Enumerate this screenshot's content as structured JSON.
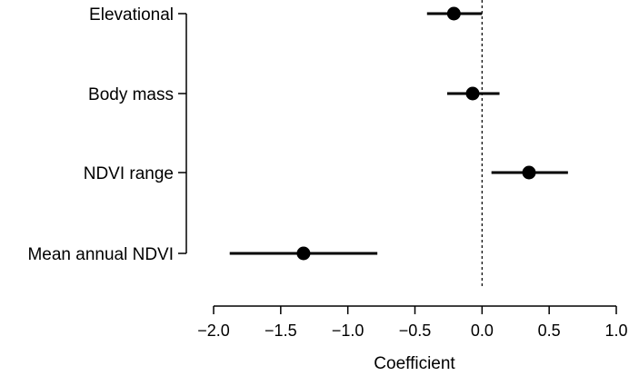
{
  "chart_data": {
    "type": "scatter",
    "subtype": "coefficient-plot-with-intervals",
    "title": "",
    "xlabel": "Coefficient",
    "ylabel": "",
    "xlim": [
      -2.0,
      1.0
    ],
    "x_ticks": [
      -2.0,
      -1.5,
      -1.0,
      -0.5,
      0.0,
      0.5,
      1.0
    ],
    "x_tick_labels": [
      "−2.0",
      "−1.5",
      "−1.0",
      "−0.5",
      "0.0",
      "0.5",
      "1.0"
    ],
    "reference_line": {
      "x": 0.0,
      "style": "dashed"
    },
    "grid": false,
    "legend": "none",
    "categories": [
      "Elevational",
      "Body mass",
      "NDVI range",
      "Mean annual NDVI"
    ],
    "estimates": [
      -0.21,
      -0.07,
      0.35,
      -1.33
    ],
    "lower": [
      -0.41,
      -0.26,
      0.07,
      -1.88
    ],
    "upper": [
      0.0,
      0.13,
      0.64,
      -0.78
    ]
  },
  "colors": {
    "point": "#000000",
    "line": "#000000",
    "background": "#ffffff"
  }
}
